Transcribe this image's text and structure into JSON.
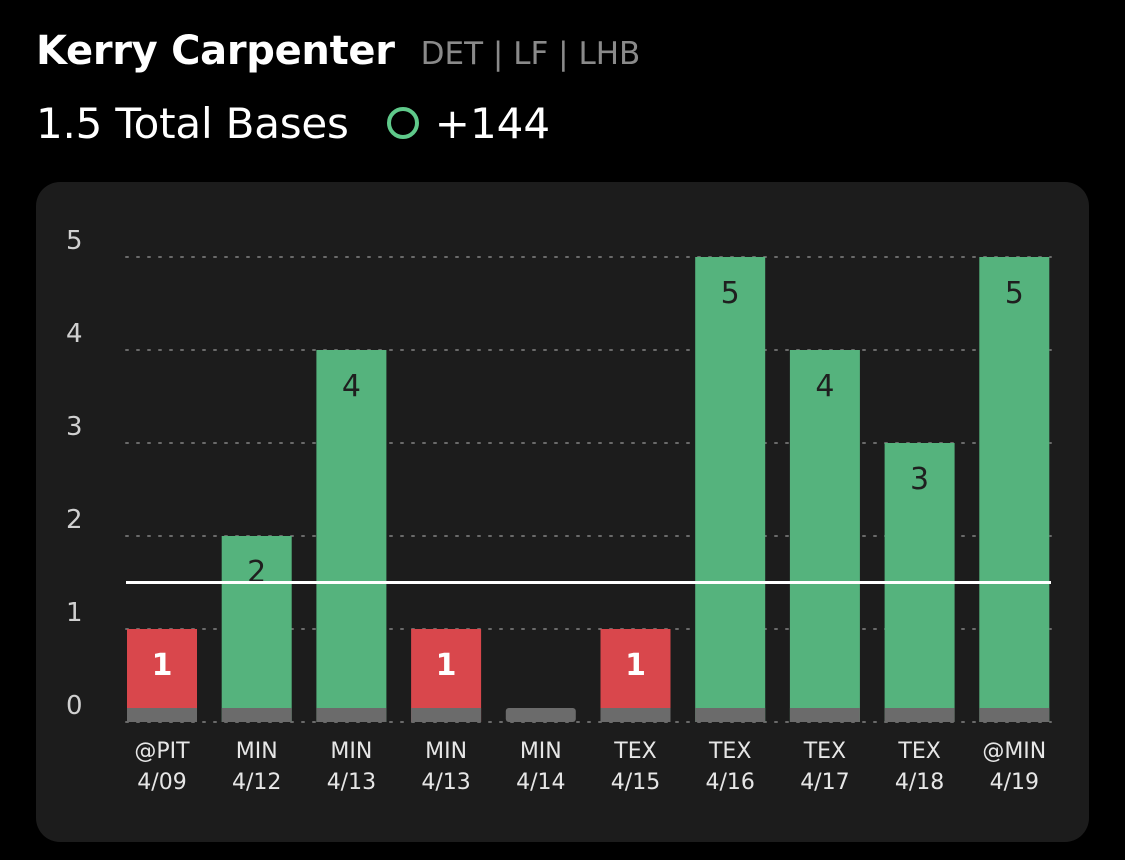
{
  "player": {
    "name": "Kerry Carpenter",
    "meta": "DET | LF | LHB"
  },
  "prop": {
    "line_text": "1.5 Total Bases",
    "odds": "+144",
    "icon": "over-circle-icon"
  },
  "colors": {
    "hit": "#55b37d",
    "miss": "#d9474c",
    "zero": "#6b6b6b",
    "line": "#ffffff",
    "grid": "#6a6a6a",
    "label_on_bar": "#1f1f1f"
  },
  "chart_data": {
    "type": "bar",
    "categories": [
      {
        "opp": "@PIT",
        "date": "4/09"
      },
      {
        "opp": "MIN",
        "date": "4/12"
      },
      {
        "opp": "MIN",
        "date": "4/13"
      },
      {
        "opp": "MIN",
        "date": "4/13"
      },
      {
        "opp": "MIN",
        "date": "4/14"
      },
      {
        "opp": "TEX",
        "date": "4/15"
      },
      {
        "opp": "TEX",
        "date": "4/16"
      },
      {
        "opp": "TEX",
        "date": "4/17"
      },
      {
        "opp": "TEX",
        "date": "4/18"
      },
      {
        "opp": "@MIN",
        "date": "4/19"
      }
    ],
    "values": [
      1,
      2,
      4,
      1,
      0,
      1,
      5,
      4,
      3,
      5
    ],
    "threshold": 1.5,
    "ylim": [
      0,
      5
    ],
    "yticks": [
      0,
      1,
      2,
      3,
      4,
      5
    ],
    "grid": true
  }
}
